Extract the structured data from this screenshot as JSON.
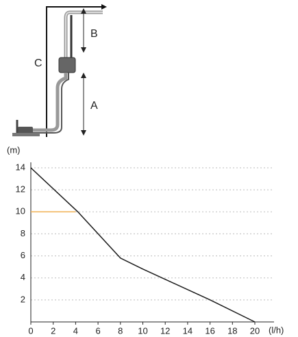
{
  "diagram": {
    "labels": [
      "A",
      "B",
      "C"
    ]
  },
  "chart_data": {
    "type": "line",
    "y_label": "(m)",
    "x_label": "(l/h)",
    "x": [
      0,
      4.2,
      8,
      10,
      16,
      20
    ],
    "series": [
      {
        "color": "#1a1a1a",
        "values": [
          14,
          10,
          5.8,
          4.8,
          2,
          0
        ]
      }
    ],
    "xlim": [
      0,
      20
    ],
    "ylim": [
      0,
      14
    ],
    "xticks": [
      0,
      2,
      4,
      6,
      8,
      10,
      12,
      14,
      16,
      18,
      20
    ],
    "yticks": [
      2,
      4,
      6,
      8,
      10,
      12,
      14
    ],
    "grid": true,
    "highlight": {
      "y": 10,
      "x": [
        0,
        4
      ],
      "color": "#f0b050"
    }
  }
}
